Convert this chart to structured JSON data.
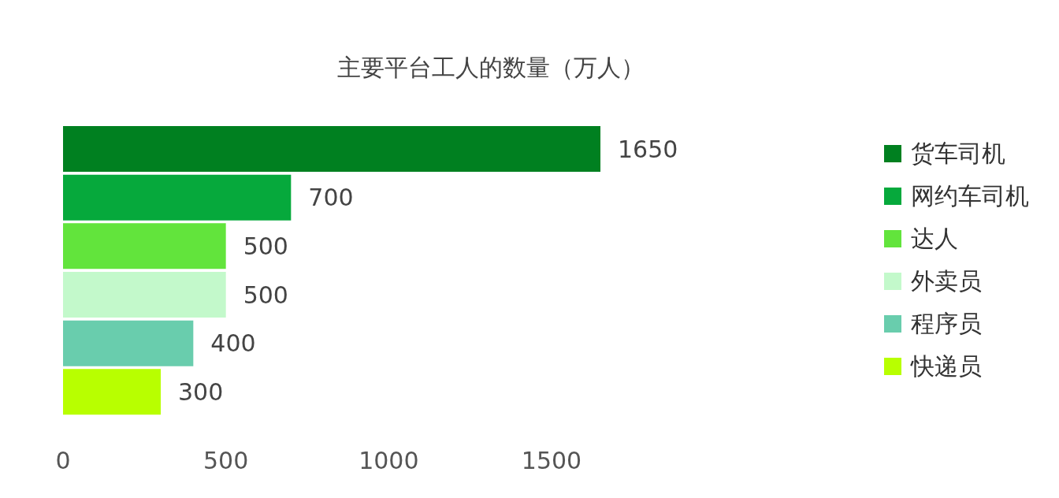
{
  "chart_data": {
    "type": "bar",
    "title": "主要平台工人的数量（万人）",
    "orientation": "horizontal",
    "stacked": true,
    "categories": [
      null,
      null,
      null,
      null,
      null,
      null
    ],
    "series": [
      {
        "name": "货车司机",
        "color": "#008020",
        "values": [
          1650,
          null,
          null,
          null,
          null,
          null
        ]
      },
      {
        "name": "网约车司机",
        "color": "#06a93c",
        "values": [
          null,
          700,
          null,
          null,
          null,
          null
        ]
      },
      {
        "name": "达人",
        "color": "#62e43c",
        "values": [
          null,
          null,
          500,
          null,
          null,
          null
        ]
      },
      {
        "name": "外卖员",
        "color": "#c3f9cb",
        "values": [
          null,
          null,
          null,
          500,
          null,
          null
        ]
      },
      {
        "name": "程序员",
        "color": "#69cdad",
        "values": [
          null,
          null,
          null,
          null,
          400,
          null
        ]
      },
      {
        "name": "快递员",
        "color": "#b8ff00",
        "values": [
          null,
          null,
          null,
          null,
          null,
          300
        ]
      }
    ],
    "xlim": [
      0,
      1650
    ],
    "xticks": [
      0,
      500,
      1000,
      1500
    ],
    "grid": false,
    "legend": "right",
    "data_labels": true
  }
}
